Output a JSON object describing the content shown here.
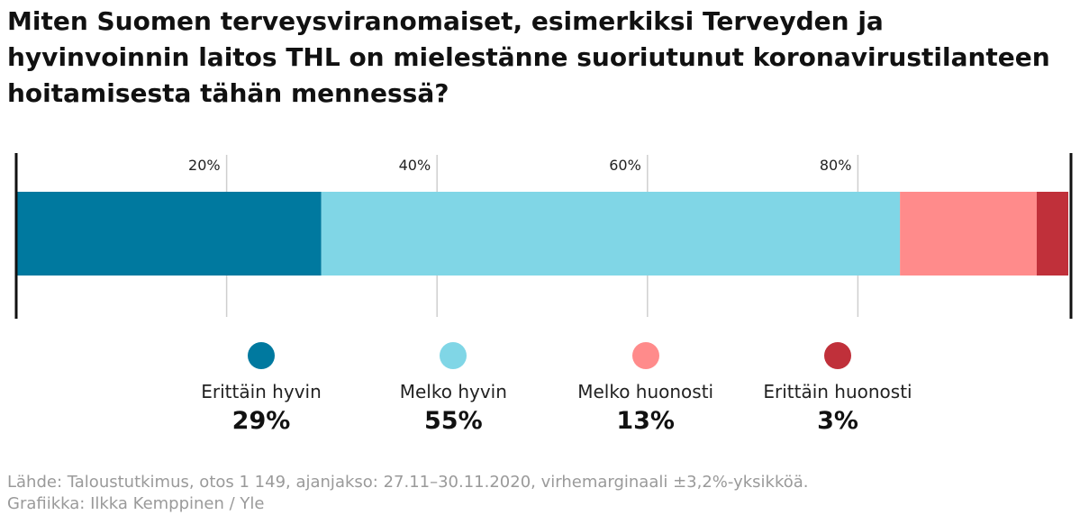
{
  "title": "Miten Suomen terveysviranomaiset, esimerkiksi Terveyden ja hyvinvoinnin laitos THL on mielestänne suoriutunut koronavirustilanteen hoitamisesta tähän mennessä?",
  "chart_data": {
    "type": "bar",
    "orientation": "horizontal-stacked",
    "xlim": [
      0,
      100
    ],
    "ticks": [
      20,
      40,
      60,
      80
    ],
    "tick_labels": [
      "20%",
      "40%",
      "60%",
      "80%"
    ],
    "grid": true,
    "legend_placement": "bottom",
    "series": [
      {
        "name": "Erittäin hyvin",
        "value": 29,
        "value_label": "29%",
        "color": "#00799f"
      },
      {
        "name": "Melko hyvin",
        "value": 55,
        "value_label": "55%",
        "color": "#80d6e6"
      },
      {
        "name": "Melko huonosti",
        "value": 13,
        "value_label": "13%",
        "color": "#ff8b8b"
      },
      {
        "name": "Erittäin huonosti",
        "value": 3,
        "value_label": "3%",
        "color": "#c0303a"
      }
    ]
  },
  "source": {
    "line1": "Lähde: Taloustutkimus, otos 1 149, ajanjakso: 27.11–30.11.2020, virhemarginaali ±3,2%-yksikköä.",
    "line2": "Grafiikka: Ilkka Kemppinen / Yle"
  }
}
